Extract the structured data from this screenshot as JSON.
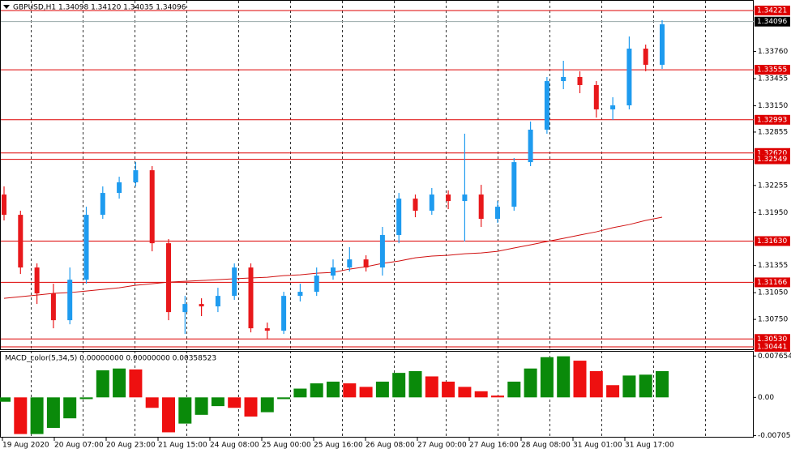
{
  "chart_data": {
    "type": "candlestick",
    "title": "GBPUSD,H1  1.34098 1.34120 1.34035 1.34096",
    "ylim": [
      1.30405,
      1.34339
    ],
    "yticks": [
      {
        "value": 1.3376,
        "label": "1.33760"
      },
      1.33455,
      {
        "value": 1.3315,
        "label": "1.33150"
      },
      1.32855,
      1.32255,
      {
        "value": 1.3195,
        "label": "1.31950"
      },
      1.31355,
      {
        "value": 1.3105,
        "label": "1.31050"
      },
      {
        "value": 1.3075,
        "label": "1.30750"
      }
    ],
    "current_price": 1.34096,
    "levels": [
      1.34221,
      1.33555,
      1.32993,
      {
        "value": 1.3262,
        "label": "1.32620"
      },
      1.32549,
      {
        "value": 1.3163,
        "label": "1.31630"
      },
      1.31166,
      {
        "value": 1.3053,
        "label": "1.30530"
      },
      1.30441
    ],
    "time_labels": [
      "19 Aug 2020",
      "20 Aug 07:00",
      "20 Aug 23:00",
      "21 Aug 15:00",
      "24 Aug 08:00",
      "25 Aug 00:00",
      "25 Aug 16:00",
      "26 Aug 08:00",
      "27 Aug 00:00",
      "27 Aug 16:00",
      "28 Aug 08:00",
      "31 Aug 01:00",
      "31 Aug 17:00"
    ],
    "up_color": "#1e9bef",
    "down_color": "#e8181b",
    "level_color": "#dd0000",
    "ma_color": "#d01010",
    "open": [
      1.32153,
      1.31925,
      1.31333,
      1.31042,
      1.30741,
      1.31196,
      1.31925,
      1.32171,
      1.3229,
      1.32426,
      1.31606,
      1.30832,
      1.30923,
      1.30896,
      1.31014,
      1.31333,
      1.3065,
      1.30623,
      1.31014,
      1.3106,
      1.31242,
      1.31333,
      1.31424,
      1.31333,
      1.31698,
      1.32107,
      1.31971,
      1.32153,
      1.3208,
      1.32153,
      1.3188,
      1.32016,
      1.32517,
      1.32882,
      1.33428,
      1.33474,
      1.33383,
      1.3311,
      1.33155,
      1.33793,
      1.33611
    ],
    "high": [
      1.32244,
      1.31971,
      1.31379,
      1.31151,
      1.31333,
      1.32016,
      1.32244,
      1.32353,
      1.32517,
      1.32472,
      1.31652,
      1.31014,
      1.30987,
      1.31105,
      1.31379,
      1.31379,
      1.30714,
      1.3106,
      1.31151,
      1.31333,
      1.31424,
      1.31561,
      1.3147,
      1.31789,
      1.32171,
      1.32153,
      1.32226,
      1.32199,
      1.32836,
      1.32262,
      1.3208,
      1.32563,
      1.32973,
      1.33474,
      1.33656,
      1.33538,
      1.33428,
      1.33246,
      1.33929,
      1.33838,
      1.34112
    ],
    "low": [
      1.31862,
      1.3126,
      1.30923,
      1.3065,
      1.30695,
      1.31151,
      1.3188,
      1.32107,
      1.32244,
      1.31515,
      1.30741,
      1.30586,
      1.30787,
      1.30832,
      1.30969,
      1.30604,
      1.30531,
      1.30586,
      1.30951,
      1.31014,
      1.31196,
      1.31288,
      1.31288,
      1.31242,
      1.31606,
      1.31898,
      1.31925,
      1.31989,
      1.31625,
      1.31789,
      1.31834,
      1.31971,
      1.32472,
      1.32836,
      1.33337,
      1.33292,
      1.33018,
      1.32991,
      1.3311,
      1.33538,
      1.33565
    ],
    "close": [
      1.31925,
      1.31333,
      1.31042,
      1.30741,
      1.31196,
      1.31925,
      1.32171,
      1.3229,
      1.32426,
      1.31606,
      1.30832,
      1.30923,
      1.30896,
      1.31014,
      1.31333,
      1.3065,
      1.30623,
      1.31014,
      1.3106,
      1.31242,
      1.31333,
      1.31424,
      1.31333,
      1.31698,
      1.32107,
      1.31971,
      1.32153,
      1.3208,
      1.32153,
      1.3188,
      1.32016,
      1.32517,
      1.32882,
      1.33428,
      1.33474,
      1.33383,
      1.3311,
      1.33155,
      1.33793,
      1.33611,
      1.34066
    ],
    "ma": [
      1.30987,
      1.31005,
      1.31023,
      1.31042,
      1.31051,
      1.31069,
      1.31087,
      1.31105,
      1.31133,
      1.31151,
      1.31169,
      1.31178,
      1.31187,
      1.31196,
      1.31206,
      1.31215,
      1.31224,
      1.31242,
      1.31251,
      1.31269,
      1.31278,
      1.31315,
      1.31342,
      1.31379,
      1.31406,
      1.31442,
      1.31461,
      1.3147,
      1.31488,
      1.31497,
      1.31515,
      1.31552,
      1.31588,
      1.31625,
      1.31661,
      1.31698,
      1.31734,
      1.3178,
      1.31816,
      1.31862,
      1.31898
    ],
    "indicator": {
      "title": "MACD_color(5,34,5) 0.00000000 0.00000000 0.00358523",
      "ylim": [
        -0.00745,
        0.00845
      ],
      "yticks": [
        0.0076542,
        {
          "value": 0,
          "label": "0.00"
        },
        -0.007058
      ],
      "up_color": "#0a8a0a",
      "down_color": "#ee1010",
      "values": [
        -0.00081,
        -0.00679,
        -0.00679,
        -0.00566,
        -0.00388,
        -0.00032,
        0.00501,
        0.00534,
        0.00517,
        -0.00194,
        -0.00647,
        -0.00485,
        -0.00323,
        -0.00162,
        -0.00194,
        -0.00356,
        -0.00275,
        -0.00032,
        0.00162,
        0.00259,
        0.00291,
        0.00259,
        0.00194,
        0.00291,
        0.00453,
        0.00485,
        0.00388,
        0.00291,
        0.00194,
        0.00113,
        0.00032,
        0.00291,
        0.00534,
        0.00744,
        0.0076,
        0.00679,
        0.00485,
        0.00226,
        0.00404,
        0.0042,
        0.00485
      ]
    }
  }
}
